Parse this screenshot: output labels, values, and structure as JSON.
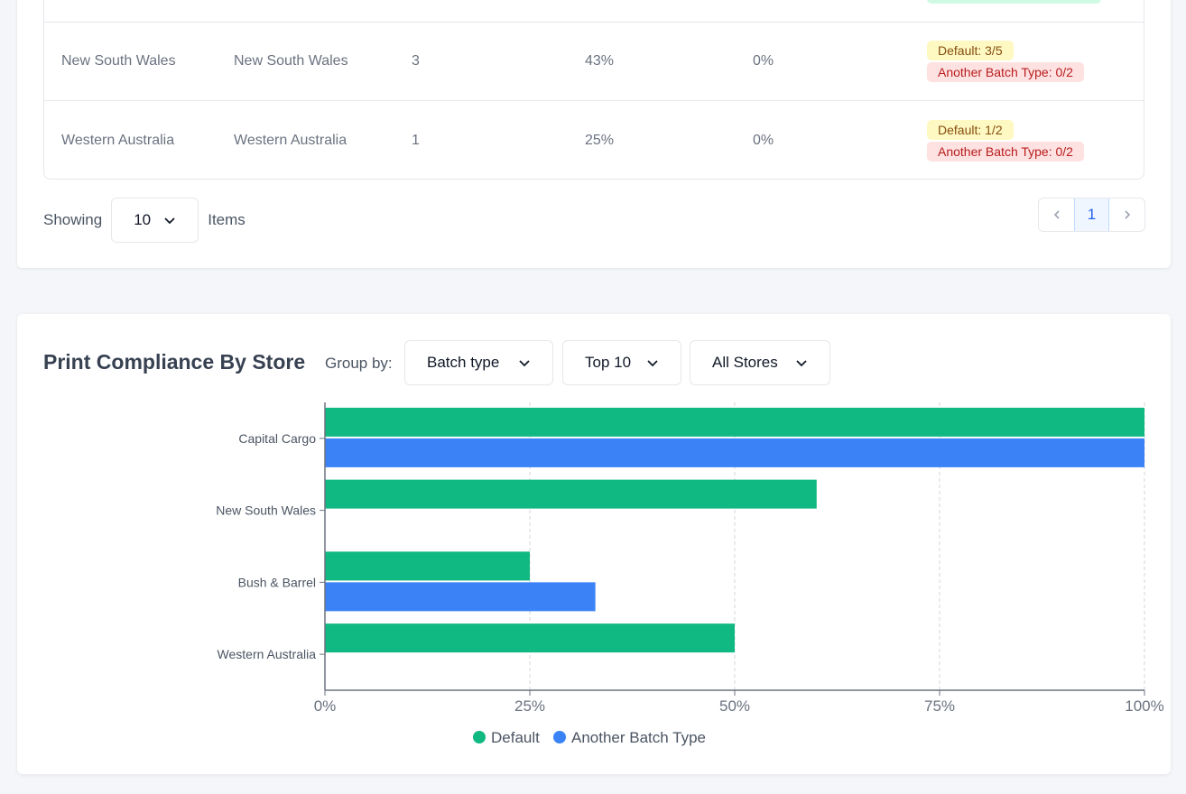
{
  "table": {
    "rows": [
      {
        "store": "New South Wales",
        "region": "New South Wales",
        "count": "3",
        "pct1": "43%",
        "pct2": "0%",
        "badge1": "Default: 3/5",
        "badge2": "Another Batch Type: 0/2"
      },
      {
        "store": "Western Australia",
        "region": "Western Australia",
        "count": "1",
        "pct1": "25%",
        "pct2": "0%",
        "badge1": "Default: 1/2",
        "badge2": "Another Batch Type: 0/2"
      }
    ]
  },
  "pagination": {
    "showing_label": "Showing",
    "page_size": "10",
    "items_label": "Items",
    "current_page": "1"
  },
  "chart_section": {
    "title": "Print Compliance By Store",
    "group_by_label": "Group by:",
    "group_by_value": "Batch type",
    "top_value": "Top 10",
    "stores_value": "All Stores"
  },
  "colors": {
    "default": "#10b981",
    "another": "#3b82f6"
  },
  "chart_data": {
    "type": "bar",
    "orientation": "horizontal",
    "title": "Print Compliance By Store",
    "categories": [
      "Capital Cargo",
      "New South Wales",
      "Bush & Barrel",
      "Western Australia"
    ],
    "series": [
      {
        "name": "Default",
        "values": [
          100,
          60,
          25,
          50
        ]
      },
      {
        "name": "Another Batch Type",
        "values": [
          100,
          0,
          33,
          0
        ]
      }
    ],
    "xlim": [
      0,
      100
    ],
    "ticks": [
      "0%",
      "25%",
      "50%",
      "75%",
      "100%"
    ],
    "tick_values": [
      0,
      25,
      50,
      75,
      100
    ],
    "grid": true,
    "legend": "bottom"
  }
}
